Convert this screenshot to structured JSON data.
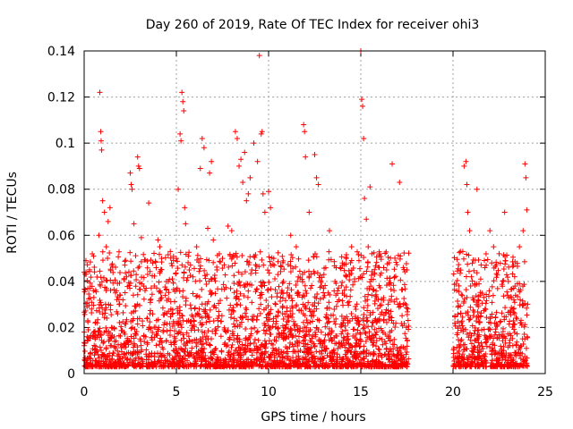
{
  "chart_data": {
    "type": "scatter",
    "title": "Day 260 of 2019, Rate Of TEC Index for receiver ohi3",
    "xlabel": "GPS time / hours",
    "ylabel": "ROTI / TECUs",
    "xlim": [
      0,
      25
    ],
    "ylim": [
      0,
      0.14
    ],
    "xticks": [
      0,
      5,
      10,
      15,
      20,
      25
    ],
    "yticks": [
      0,
      0.02,
      0.04,
      0.06,
      0.08,
      0.1,
      0.12,
      0.14
    ],
    "ytick_labels": [
      "0",
      "0.02",
      "0.04",
      "0.06",
      "0.08",
      "0.1",
      "0.12",
      "0.14"
    ],
    "grid": true,
    "legend": "none",
    "marker": "plus",
    "color": "#ff0000",
    "data_gap_hours": [
      17.6,
      20.0
    ],
    "series": [
      {
        "points": [
          [
            0.1,
            0.044
          ],
          [
            0.2,
            0.037
          ],
          [
            0.4,
            0.028
          ],
          [
            0.6,
            0.022
          ],
          [
            0.8,
            0.06
          ],
          [
            0.85,
            0.122
          ],
          [
            0.9,
            0.105
          ],
          [
            0.92,
            0.101
          ],
          [
            0.95,
            0.097
          ],
          [
            1.0,
            0.075
          ],
          [
            1.1,
            0.07
          ],
          [
            1.2,
            0.055
          ],
          [
            1.3,
            0.066
          ],
          [
            1.4,
            0.072
          ],
          [
            1.5,
            0.047
          ],
          [
            1.7,
            0.035
          ],
          [
            1.9,
            0.03
          ],
          [
            2.1,
            0.032
          ],
          [
            2.3,
            0.042
          ],
          [
            2.5,
            0.087
          ],
          [
            2.55,
            0.082
          ],
          [
            2.6,
            0.08
          ],
          [
            2.7,
            0.065
          ],
          [
            2.9,
            0.094
          ],
          [
            2.95,
            0.09
          ],
          [
            3.0,
            0.089
          ],
          [
            3.1,
            0.059
          ],
          [
            3.3,
            0.036
          ],
          [
            3.5,
            0.074
          ],
          [
            3.8,
            0.038
          ],
          [
            4.0,
            0.058
          ],
          [
            4.1,
            0.055
          ],
          [
            4.2,
            0.05
          ],
          [
            4.4,
            0.034
          ],
          [
            4.7,
            0.028
          ],
          [
            5.0,
            0.05
          ],
          [
            5.1,
            0.08
          ],
          [
            5.2,
            0.104
          ],
          [
            5.25,
            0.101
          ],
          [
            5.3,
            0.122
          ],
          [
            5.35,
            0.118
          ],
          [
            5.4,
            0.114
          ],
          [
            5.45,
            0.072
          ],
          [
            5.5,
            0.065
          ],
          [
            5.7,
            0.045
          ],
          [
            5.9,
            0.042
          ],
          [
            6.1,
            0.055
          ],
          [
            6.3,
            0.089
          ],
          [
            6.4,
            0.102
          ],
          [
            6.5,
            0.098
          ],
          [
            6.7,
            0.063
          ],
          [
            6.8,
            0.087
          ],
          [
            6.9,
            0.092
          ],
          [
            7.0,
            0.058
          ],
          [
            7.2,
            0.045
          ],
          [
            7.5,
            0.05
          ],
          [
            7.8,
            0.064
          ],
          [
            8.0,
            0.062
          ],
          [
            8.2,
            0.105
          ],
          [
            8.3,
            0.102
          ],
          [
            8.4,
            0.09
          ],
          [
            8.5,
            0.093
          ],
          [
            8.6,
            0.083
          ],
          [
            8.7,
            0.096
          ],
          [
            8.8,
            0.075
          ],
          [
            8.9,
            0.078
          ],
          [
            9.0,
            0.085
          ],
          [
            9.2,
            0.1
          ],
          [
            9.4,
            0.092
          ],
          [
            9.5,
            0.138
          ],
          [
            9.6,
            0.104
          ],
          [
            9.65,
            0.105
          ],
          [
            9.7,
            0.078
          ],
          [
            9.8,
            0.07
          ],
          [
            10.0,
            0.079
          ],
          [
            10.1,
            0.072
          ],
          [
            10.3,
            0.047
          ],
          [
            10.5,
            0.043
          ],
          [
            10.8,
            0.04
          ],
          [
            11.0,
            0.035
          ],
          [
            11.2,
            0.06
          ],
          [
            11.5,
            0.055
          ],
          [
            11.9,
            0.108
          ],
          [
            11.95,
            0.105
          ],
          [
            12.0,
            0.094
          ],
          [
            12.2,
            0.07
          ],
          [
            12.5,
            0.095
          ],
          [
            12.6,
            0.085
          ],
          [
            12.7,
            0.082
          ],
          [
            13.0,
            0.043
          ],
          [
            13.3,
            0.062
          ],
          [
            13.6,
            0.04
          ],
          [
            14.0,
            0.048
          ],
          [
            14.5,
            0.055
          ],
          [
            14.9,
            0.049
          ],
          [
            15.0,
            0.14
          ],
          [
            15.05,
            0.119
          ],
          [
            15.1,
            0.116
          ],
          [
            15.15,
            0.102
          ],
          [
            15.2,
            0.076
          ],
          [
            15.3,
            0.067
          ],
          [
            15.4,
            0.055
          ],
          [
            15.5,
            0.081
          ],
          [
            15.6,
            0.052
          ],
          [
            16.0,
            0.046
          ],
          [
            16.4,
            0.045
          ],
          [
            16.7,
            0.091
          ],
          [
            16.8,
            0.036
          ],
          [
            17.0,
            0.03
          ],
          [
            17.1,
            0.083
          ],
          [
            17.3,
            0.03
          ],
          [
            17.5,
            0.045
          ],
          [
            17.55,
            0.028
          ],
          [
            20.1,
            0.025
          ],
          [
            20.2,
            0.036
          ],
          [
            20.4,
            0.053
          ],
          [
            20.5,
            0.034
          ],
          [
            20.6,
            0.09
          ],
          [
            20.7,
            0.092
          ],
          [
            20.75,
            0.082
          ],
          [
            20.8,
            0.07
          ],
          [
            20.9,
            0.062
          ],
          [
            21.0,
            0.042
          ],
          [
            21.1,
            0.032
          ],
          [
            21.3,
            0.08
          ],
          [
            21.5,
            0.025
          ],
          [
            21.8,
            0.047
          ],
          [
            22.0,
            0.062
          ],
          [
            22.2,
            0.055
          ],
          [
            22.5,
            0.052
          ],
          [
            22.8,
            0.07
          ],
          [
            23.0,
            0.04
          ],
          [
            23.3,
            0.032
          ],
          [
            23.6,
            0.055
          ],
          [
            23.8,
            0.062
          ],
          [
            23.9,
            0.091
          ],
          [
            23.95,
            0.085
          ],
          [
            24.0,
            0.071
          ]
        ]
      }
    ]
  }
}
